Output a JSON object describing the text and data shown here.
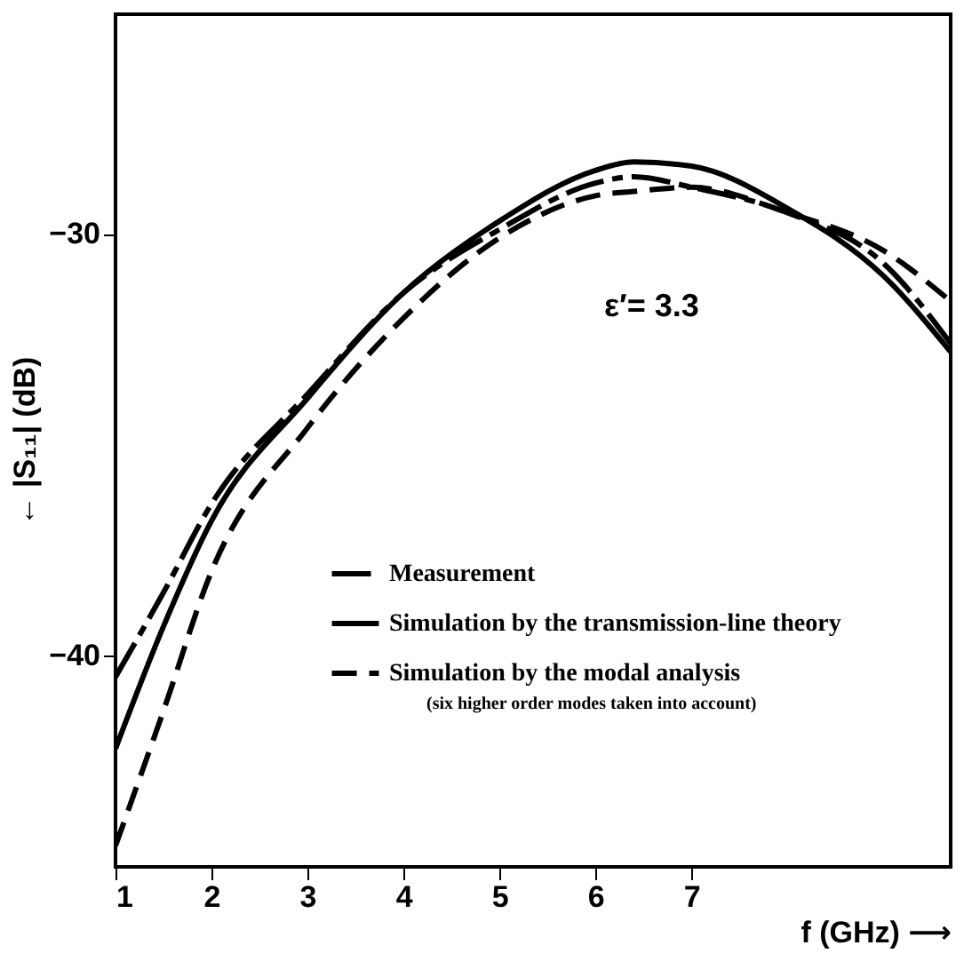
{
  "chart_data": {
    "type": "line",
    "xlabel": "f (GHz) ⟶",
    "ylabel": "← |S₁₁| (dB)",
    "xlim": [
      1,
      9.7
    ],
    "ylim": [
      -45,
      -24.8
    ],
    "xticks": [
      1,
      2,
      3,
      4,
      5,
      6,
      7
    ],
    "yticks": [
      -30,
      -40
    ],
    "grid": false,
    "legend": "bottom right",
    "marker": "none",
    "x": [
      1,
      1.5,
      2,
      3,
      4,
      5,
      6,
      6.4,
      7,
      8,
      9,
      9.7
    ],
    "series": [
      {
        "name": "Measurement",
        "color": "#000000",
        "line_style": "dashdot",
        "values": [
          -40.5,
          -38.5,
          -36.4,
          -33.8,
          -31.4,
          -29.9,
          -28.8,
          -28.65,
          -28.9,
          -29.5,
          -30.7,
          -32.6
        ]
      },
      {
        "name": "Simulation by the transmission-line theory",
        "color": "#000000",
        "line_style": "solid",
        "values": [
          -42.2,
          -39.3,
          -36.8,
          -33.9,
          -31.4,
          -29.7,
          -28.5,
          -28.3,
          -28.4,
          -29.4,
          -31.0,
          -32.8
        ]
      },
      {
        "name": "Simulation by the modal analysis",
        "color": "#000000",
        "line_style": "dashed",
        "values": [
          -44.5,
          -41.3,
          -38.0,
          -34.6,
          -32.0,
          -30.1,
          -29.1,
          -29.0,
          -28.9,
          -29.5,
          -30.4,
          -31.6
        ]
      }
    ],
    "annotations": [
      "ε′= 3.3",
      "(six higher order modes taken into account)"
    ]
  }
}
